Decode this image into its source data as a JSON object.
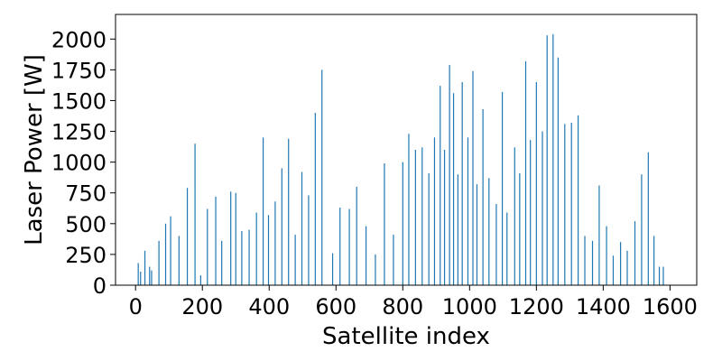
{
  "chart_data": {
    "type": "bar",
    "title": "",
    "xlabel": "Satellite index",
    "ylabel": "Laser Power [W]",
    "xlim": [
      -60,
      1680
    ],
    "ylim": [
      0,
      2200
    ],
    "xticks": [
      0,
      200,
      400,
      600,
      800,
      1000,
      1200,
      1400,
      1600
    ],
    "yticks": [
      0,
      250,
      500,
      750,
      1000,
      1250,
      1500,
      1750,
      2000
    ],
    "bar_color": "#1f77b4",
    "grid": false,
    "legend": "none",
    "series": [
      {
        "x": [
          8,
          15,
          28,
          42,
          48,
          70,
          90,
          105,
          130,
          155,
          178,
          195,
          215,
          240,
          258,
          285,
          300,
          318,
          340,
          362,
          382,
          398,
          418,
          438,
          458,
          478,
          498,
          518,
          538,
          558,
          590,
          612,
          640,
          662,
          690,
          718,
          745,
          772,
          800,
          818,
          838,
          858,
          878,
          895,
          912,
          925,
          940,
          952,
          965,
          978,
          995,
          1010,
          1022,
          1040,
          1058,
          1080,
          1098,
          1112,
          1135,
          1150,
          1168,
          1182,
          1200,
          1218,
          1232,
          1250,
          1265,
          1285,
          1305,
          1325,
          1345,
          1368,
          1388,
          1410,
          1430,
          1452,
          1472,
          1495,
          1515,
          1535,
          1552,
          1568,
          1580
        ],
        "values": [
          180,
          110,
          280,
          150,
          120,
          360,
          500,
          560,
          400,
          790,
          1150,
          80,
          620,
          720,
          360,
          760,
          750,
          440,
          450,
          590,
          1200,
          570,
          680,
          950,
          1190,
          410,
          920,
          730,
          1400,
          1750,
          260,
          630,
          620,
          800,
          480,
          250,
          990,
          410,
          1000,
          1230,
          1100,
          1120,
          910,
          1200,
          1620,
          1100,
          1790,
          1560,
          900,
          1650,
          1200,
          1740,
          820,
          1430,
          870,
          660,
          1570,
          590,
          1120,
          910,
          1820,
          1180,
          1650,
          1250,
          2030,
          2040,
          1850,
          1310,
          1320,
          1380,
          400,
          360,
          810,
          480,
          240,
          350,
          280,
          520,
          900,
          1080,
          400,
          150,
          150
        ]
      }
    ]
  }
}
